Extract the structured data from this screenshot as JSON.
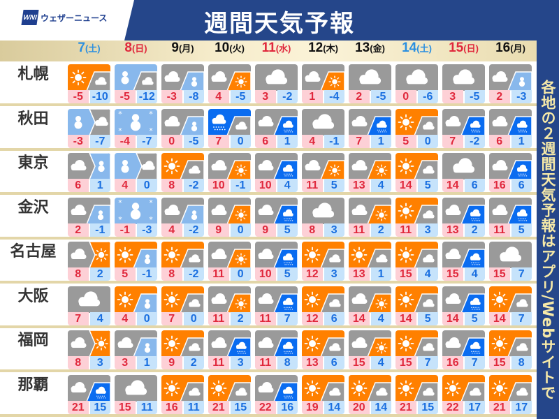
{
  "header": {
    "logo_mark": "WNI",
    "logo_text": "ウェザーニュース",
    "title": "週間天気予報"
  },
  "side_text": "各地の２週間天気予報はアプリ/Webサイトで",
  "colors": {
    "sun": "#ff8000",
    "cloud": "#9a9a9a",
    "snow": "#88b8ec",
    "rain": "#0a6cf0",
    "saturday": "#2a8fe0",
    "holiday": "#e0283c",
    "weekday": "#111111",
    "navy": "#25468a"
  },
  "days": [
    {
      "date": "7",
      "dow": "(土)",
      "kind": "saturday"
    },
    {
      "date": "8",
      "dow": "(日)",
      "kind": "holiday"
    },
    {
      "date": "9",
      "dow": "(月)",
      "kind": "weekday"
    },
    {
      "date": "10",
      "dow": "(火)",
      "kind": "weekday"
    },
    {
      "date": "11",
      "dow": "(水)",
      "kind": "holiday"
    },
    {
      "date": "12",
      "dow": "(木)",
      "kind": "weekday"
    },
    {
      "date": "13",
      "dow": "(金)",
      "kind": "weekday"
    },
    {
      "date": "14",
      "dow": "(土)",
      "kind": "saturday"
    },
    {
      "date": "15",
      "dow": "(日)",
      "kind": "holiday"
    },
    {
      "date": "16",
      "dow": "(月)",
      "kind": "weekday"
    }
  ],
  "cities": [
    {
      "name": "札幌",
      "forecast": [
        {
          "w": "sun",
          "w2": "cloud",
          "sep": "sometimes",
          "hi": "-5",
          "lo": "-10"
        },
        {
          "w": "snow",
          "w2": "cloud",
          "sep": "sometimes",
          "hi": "-5",
          "lo": "-12"
        },
        {
          "w": "cloud",
          "w2": "snow",
          "sep": "sometimes",
          "hi": "-3",
          "lo": "-8"
        },
        {
          "w": "cloud",
          "w2": "sun",
          "sep": "sometimes",
          "hi": "4",
          "lo": "-5"
        },
        {
          "w": "cloud",
          "hi": "3",
          "lo": "-2"
        },
        {
          "w": "cloud",
          "w2": "sun",
          "sep": "sometimes",
          "hi": "1",
          "lo": "-4"
        },
        {
          "w": "cloud",
          "hi": "2",
          "lo": "-5"
        },
        {
          "w": "cloud",
          "hi": "0",
          "lo": "-6"
        },
        {
          "w": "cloud",
          "hi": "3",
          "lo": "-5"
        },
        {
          "w": "cloud",
          "w2": "snow",
          "sep": "sometimes",
          "hi": "2",
          "lo": "-3"
        }
      ]
    },
    {
      "name": "秋田",
      "forecast": [
        {
          "w": "snow",
          "w2": "cloud",
          "sep": "later",
          "hi": "-3",
          "lo": "-7"
        },
        {
          "w": "heavy-snow",
          "hi": "-4",
          "lo": "-7"
        },
        {
          "w": "cloud",
          "w2": "snow",
          "sep": "sometimes",
          "hi": "0",
          "lo": "-5"
        },
        {
          "w": "rain",
          "w2": "cloud",
          "sep": "sometimes",
          "hi": "7",
          "lo": "0"
        },
        {
          "w": "cloud",
          "w2": "rain",
          "sep": "sometimes",
          "hi": "6",
          "lo": "1"
        },
        {
          "w": "cloud",
          "hi": "4",
          "lo": "-1"
        },
        {
          "w": "cloud",
          "w2": "rain",
          "sep": "sometimes",
          "hi": "7",
          "lo": "1"
        },
        {
          "w": "sun",
          "w2": "cloud",
          "sep": "sometimes",
          "hi": "5",
          "lo": "0"
        },
        {
          "w": "cloud",
          "w2": "rain",
          "sep": "sometimes",
          "hi": "7",
          "lo": "-2"
        },
        {
          "w": "cloud",
          "w2": "rain",
          "sep": "sometimes",
          "hi": "6",
          "lo": "1"
        }
      ]
    },
    {
      "name": "東京",
      "forecast": [
        {
          "w": "cloud",
          "w2": "snow",
          "sep": "later",
          "hi": "6",
          "lo": "1"
        },
        {
          "w": "snow",
          "w2": "cloud",
          "sep": "later",
          "hi": "4",
          "lo": "0"
        },
        {
          "w": "sun",
          "w2": "cloud",
          "sep": "sometimes",
          "hi": "8",
          "lo": "-2"
        },
        {
          "w": "cloud",
          "w2": "sun",
          "sep": "sometimes",
          "hi": "10",
          "lo": "-1"
        },
        {
          "w": "cloud",
          "w2": "rain",
          "sep": "sometimes",
          "hi": "10",
          "lo": "4"
        },
        {
          "w": "cloud",
          "w2": "sun",
          "sep": "sometimes",
          "hi": "11",
          "lo": "5"
        },
        {
          "w": "cloud",
          "w2": "sun",
          "sep": "sometimes",
          "hi": "13",
          "lo": "4"
        },
        {
          "w": "sun",
          "w2": "cloud",
          "sep": "sometimes",
          "hi": "14",
          "lo": "5"
        },
        {
          "w": "cloud",
          "hi": "14",
          "lo": "6"
        },
        {
          "w": "cloud",
          "w2": "rain",
          "sep": "sometimes",
          "hi": "16",
          "lo": "6"
        }
      ]
    },
    {
      "name": "金沢",
      "forecast": [
        {
          "w": "cloud",
          "w2": "snow",
          "sep": "sometimes",
          "hi": "2",
          "lo": "-1"
        },
        {
          "w": "heavy-snow",
          "hi": "-1",
          "lo": "-3"
        },
        {
          "w": "cloud",
          "w2": "snow",
          "sep": "sometimes",
          "hi": "4",
          "lo": "-2"
        },
        {
          "w": "cloud",
          "w2": "sun",
          "sep": "sometimes",
          "hi": "9",
          "lo": "0"
        },
        {
          "w": "cloud",
          "w2": "rain",
          "sep": "sometimes",
          "hi": "9",
          "lo": "5"
        },
        {
          "w": "cloud",
          "hi": "8",
          "lo": "3"
        },
        {
          "w": "cloud",
          "w2": "sun",
          "sep": "sometimes",
          "hi": "11",
          "lo": "2"
        },
        {
          "w": "sun",
          "w2": "cloud",
          "sep": "sometimes",
          "hi": "11",
          "lo": "3"
        },
        {
          "w": "cloud",
          "w2": "rain",
          "sep": "sometimes",
          "hi": "13",
          "lo": "2"
        },
        {
          "w": "cloud",
          "w2": "rain",
          "sep": "sometimes",
          "hi": "11",
          "lo": "5"
        }
      ]
    },
    {
      "name": "名古屋",
      "forecast": [
        {
          "w": "cloud",
          "w2": "sun",
          "sep": "later",
          "hi": "8",
          "lo": "2"
        },
        {
          "w": "sun",
          "w2": "snow",
          "sep": "sometimes",
          "hi": "5",
          "lo": "-1"
        },
        {
          "w": "sun",
          "w2": "cloud",
          "sep": "sometimes",
          "hi": "8",
          "lo": "-2"
        },
        {
          "w": "cloud",
          "w2": "sun",
          "sep": "sometimes",
          "hi": "11",
          "lo": "0"
        },
        {
          "w": "cloud",
          "w2": "rain",
          "sep": "sometimes",
          "hi": "10",
          "lo": "5"
        },
        {
          "w": "sun",
          "w2": "cloud",
          "sep": "sometimes",
          "hi": "12",
          "lo": "3"
        },
        {
          "w": "sun",
          "w2": "cloud",
          "sep": "sometimes",
          "hi": "13",
          "lo": "1"
        },
        {
          "w": "sun",
          "w2": "cloud",
          "sep": "sometimes",
          "hi": "15",
          "lo": "4"
        },
        {
          "w": "cloud",
          "w2": "rain",
          "sep": "sometimes",
          "hi": "15",
          "lo": "4"
        },
        {
          "w": "cloud",
          "hi": "15",
          "lo": "7"
        }
      ]
    },
    {
      "name": "大阪",
      "forecast": [
        {
          "w": "cloud",
          "hi": "7",
          "lo": "4"
        },
        {
          "w": "sun",
          "w2": "snow",
          "sep": "sometimes",
          "hi": "4",
          "lo": "0"
        },
        {
          "w": "sun",
          "w2": "cloud",
          "sep": "sometimes",
          "hi": "7",
          "lo": "0"
        },
        {
          "w": "cloud",
          "w2": "sun",
          "sep": "sometimes",
          "hi": "11",
          "lo": "2"
        },
        {
          "w": "cloud",
          "w2": "rain",
          "sep": "sometimes",
          "hi": "11",
          "lo": "7"
        },
        {
          "w": "sun",
          "w2": "cloud",
          "sep": "sometimes",
          "hi": "12",
          "lo": "6"
        },
        {
          "w": "cloud",
          "w2": "sun",
          "sep": "sometimes",
          "hi": "14",
          "lo": "4"
        },
        {
          "w": "sun",
          "w2": "cloud",
          "sep": "sometimes",
          "hi": "14",
          "lo": "5"
        },
        {
          "w": "cloud",
          "w2": "rain",
          "sep": "sometimes",
          "hi": "14",
          "lo": "5"
        },
        {
          "w": "sun",
          "w2": "cloud",
          "sep": "sometimes",
          "hi": "14",
          "lo": "7"
        }
      ]
    },
    {
      "name": "福岡",
      "forecast": [
        {
          "w": "cloud",
          "w2": "sun",
          "sep": "later",
          "hi": "8",
          "lo": "3"
        },
        {
          "w": "cloud",
          "w2": "snow",
          "sep": "sometimes",
          "hi": "3",
          "lo": "1"
        },
        {
          "w": "sun",
          "w2": "cloud",
          "sep": "sometimes",
          "hi": "9",
          "lo": "2"
        },
        {
          "w": "cloud",
          "w2": "rain",
          "sep": "sometimes",
          "hi": "11",
          "lo": "3"
        },
        {
          "w": "cloud",
          "w2": "rain",
          "sep": "sometimes",
          "hi": "11",
          "lo": "8"
        },
        {
          "w": "sun",
          "w2": "cloud",
          "sep": "sometimes",
          "hi": "13",
          "lo": "6"
        },
        {
          "w": "cloud",
          "w2": "sun",
          "sep": "sometimes",
          "hi": "15",
          "lo": "4"
        },
        {
          "w": "sun",
          "w2": "cloud",
          "sep": "sometimes",
          "hi": "15",
          "lo": "7"
        },
        {
          "w": "cloud",
          "w2": "rain",
          "sep": "sometimes",
          "hi": "16",
          "lo": "7"
        },
        {
          "w": "sun",
          "w2": "cloud",
          "sep": "sometimes",
          "hi": "15",
          "lo": "8"
        }
      ]
    },
    {
      "name": "那覇",
      "forecast": [
        {
          "w": "cloud",
          "w2": "rain",
          "sep": "sometimes",
          "hi": "21",
          "lo": "15"
        },
        {
          "w": "cloud",
          "hi": "15",
          "lo": "11"
        },
        {
          "w": "sun",
          "w2": "cloud",
          "sep": "sometimes",
          "hi": "16",
          "lo": "11"
        },
        {
          "w": "sun",
          "w2": "cloud",
          "sep": "sometimes",
          "hi": "21",
          "lo": "15"
        },
        {
          "w": "cloud",
          "w2": "rain",
          "sep": "sometimes",
          "hi": "22",
          "lo": "16"
        },
        {
          "w": "sun",
          "w2": "cloud",
          "sep": "sometimes",
          "hi": "19",
          "lo": "14"
        },
        {
          "w": "sun",
          "w2": "cloud",
          "sep": "sometimes",
          "hi": "20",
          "lo": "14"
        },
        {
          "w": "sun",
          "w2": "cloud",
          "sep": "sometimes",
          "hi": "21",
          "lo": "15"
        },
        {
          "w": "sun",
          "w2": "cloud",
          "sep": "sometimes",
          "hi": "22",
          "lo": "17"
        },
        {
          "w": "sun",
          "w2": "cloud",
          "sep": "sometimes",
          "hi": "21",
          "lo": "17"
        }
      ]
    }
  ]
}
